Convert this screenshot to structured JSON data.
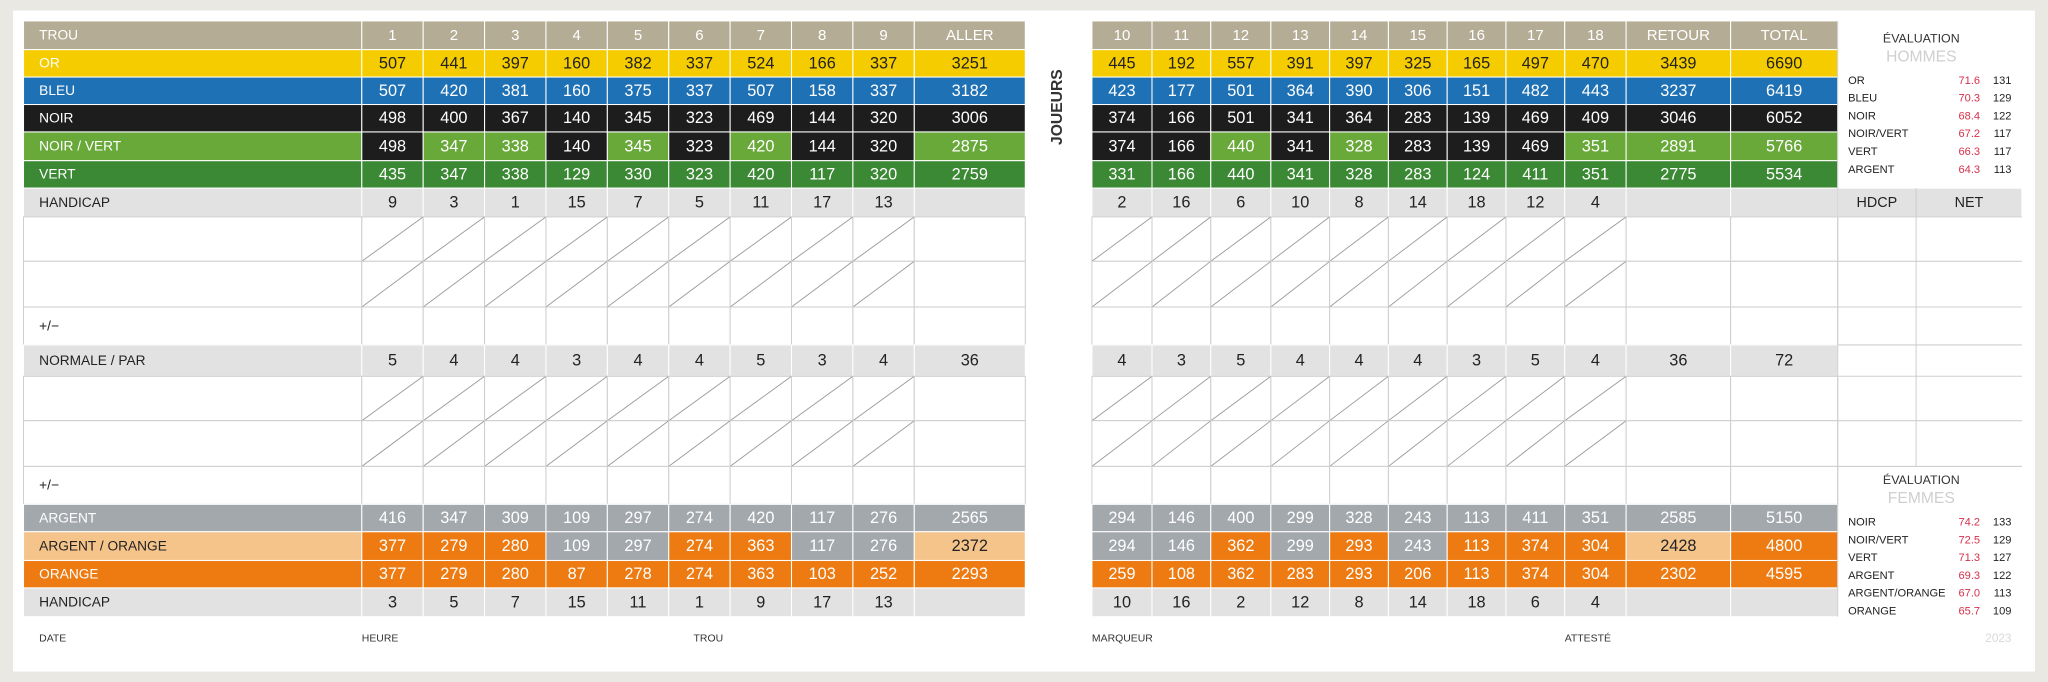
{
  "side_label": "JOUEURS",
  "front": {
    "rows": [
      [
        "TROU",
        1,
        2,
        3,
        4,
        5,
        6,
        7,
        8,
        9,
        "ALLER"
      ],
      [
        "OR",
        507,
        441,
        397,
        160,
        382,
        337,
        524,
        166,
        337,
        3251
      ],
      [
        "BLEU",
        507,
        420,
        381,
        160,
        375,
        337,
        507,
        158,
        337,
        3182
      ],
      [
        "NOIR",
        498,
        400,
        367,
        140,
        345,
        323,
        469,
        144,
        320,
        3006
      ],
      [
        "NOIR / VERT",
        498,
        347,
        338,
        140,
        345,
        323,
        420,
        144,
        320,
        2875
      ],
      [
        "VERT",
        435,
        347,
        338,
        129,
        330,
        323,
        420,
        117,
        320,
        2759
      ],
      [
        "HANDICAP",
        9,
        3,
        1,
        15,
        7,
        5,
        11,
        17,
        13
      ],
      [
        "+/−"
      ],
      [
        "NORMALE / PAR",
        5,
        4,
        4,
        3,
        4,
        4,
        5,
        3,
        4,
        36
      ],
      [
        "+/−"
      ],
      [
        "ARGENT",
        416,
        347,
        309,
        109,
        297,
        274,
        420,
        117,
        276,
        2565
      ],
      [
        "ARGENT /  ORANGE",
        377,
        279,
        280,
        109,
        297,
        274,
        363,
        117,
        276,
        2372
      ],
      [
        "ORANGE",
        377,
        279,
        280,
        87,
        278,
        274,
        363,
        103,
        252,
        2293
      ],
      [
        "HANDICAP",
        3,
        5,
        7,
        15,
        11,
        1,
        9,
        17,
        13
      ]
    ]
  },
  "back": {
    "rows": [
      [
        10,
        11,
        12,
        13,
        14,
        15,
        16,
        17,
        18,
        "RETOUR",
        "TOTAL"
      ],
      [
        445,
        192,
        557,
        391,
        397,
        325,
        165,
        497,
        470,
        3439,
        6690
      ],
      [
        423,
        177,
        501,
        364,
        390,
        306,
        151,
        482,
        443,
        3237,
        6419
      ],
      [
        374,
        166,
        501,
        341,
        364,
        283,
        139,
        469,
        409,
        3046,
        6052
      ],
      [
        374,
        166,
        440,
        341,
        328,
        283,
        139,
        469,
        351,
        2891,
        5766
      ],
      [
        331,
        166,
        440,
        341,
        328,
        283,
        124,
        411,
        351,
        2775,
        5534
      ],
      [
        2,
        16,
        6,
        10,
        8,
        14,
        18,
        12,
        4
      ],
      [
        4,
        3,
        5,
        4,
        4,
        4,
        3,
        5,
        4,
        36,
        72
      ],
      [
        294,
        146,
        400,
        299,
        328,
        243,
        113,
        411,
        351,
        2585,
        5150
      ],
      [
        294,
        146,
        362,
        299,
        293,
        243,
        113,
        374,
        304,
        2428,
        4800
      ],
      [
        259,
        108,
        362,
        283,
        293,
        206,
        113,
        374,
        304,
        2302,
        4595
      ],
      [
        10,
        16,
        2,
        12,
        8,
        14,
        18,
        6,
        4
      ]
    ]
  },
  "ratings": {
    "men": {
      "title": "ÉVALUATION",
      "subtitle": "HOMMES",
      "rows": [
        [
          "OR",
          "71.6",
          "131"
        ],
        [
          "BLEU",
          "70.3",
          "129"
        ],
        [
          "NOIR",
          "68.4",
          "122"
        ],
        [
          "NOIR/VERT",
          "67.2",
          "117"
        ],
        [
          "VERT",
          "66.3",
          "117"
        ],
        [
          "ARGENT",
          "64.3",
          "113"
        ]
      ]
    },
    "score_headers": [
      "HDCP",
      "NET"
    ],
    "women": {
      "title": "ÉVALUATION",
      "subtitle": "FEMMES",
      "rows": [
        [
          "NOIR",
          "74.2",
          "133"
        ],
        [
          "NOIR/VERT",
          "72.5",
          "129"
        ],
        [
          "VERT",
          "71.3",
          "127"
        ],
        [
          "ARGENT",
          "69.3",
          "122"
        ],
        [
          "ARGENT/ORANGE",
          "67.0",
          "113"
        ],
        [
          "ORANGE",
          "65.7",
          "109"
        ]
      ]
    }
  },
  "footer": {
    "fields": [
      "DATE",
      "HEURE",
      "TROU",
      "MARQUEUR",
      "ATTESTÉ"
    ],
    "year": "2023"
  }
}
